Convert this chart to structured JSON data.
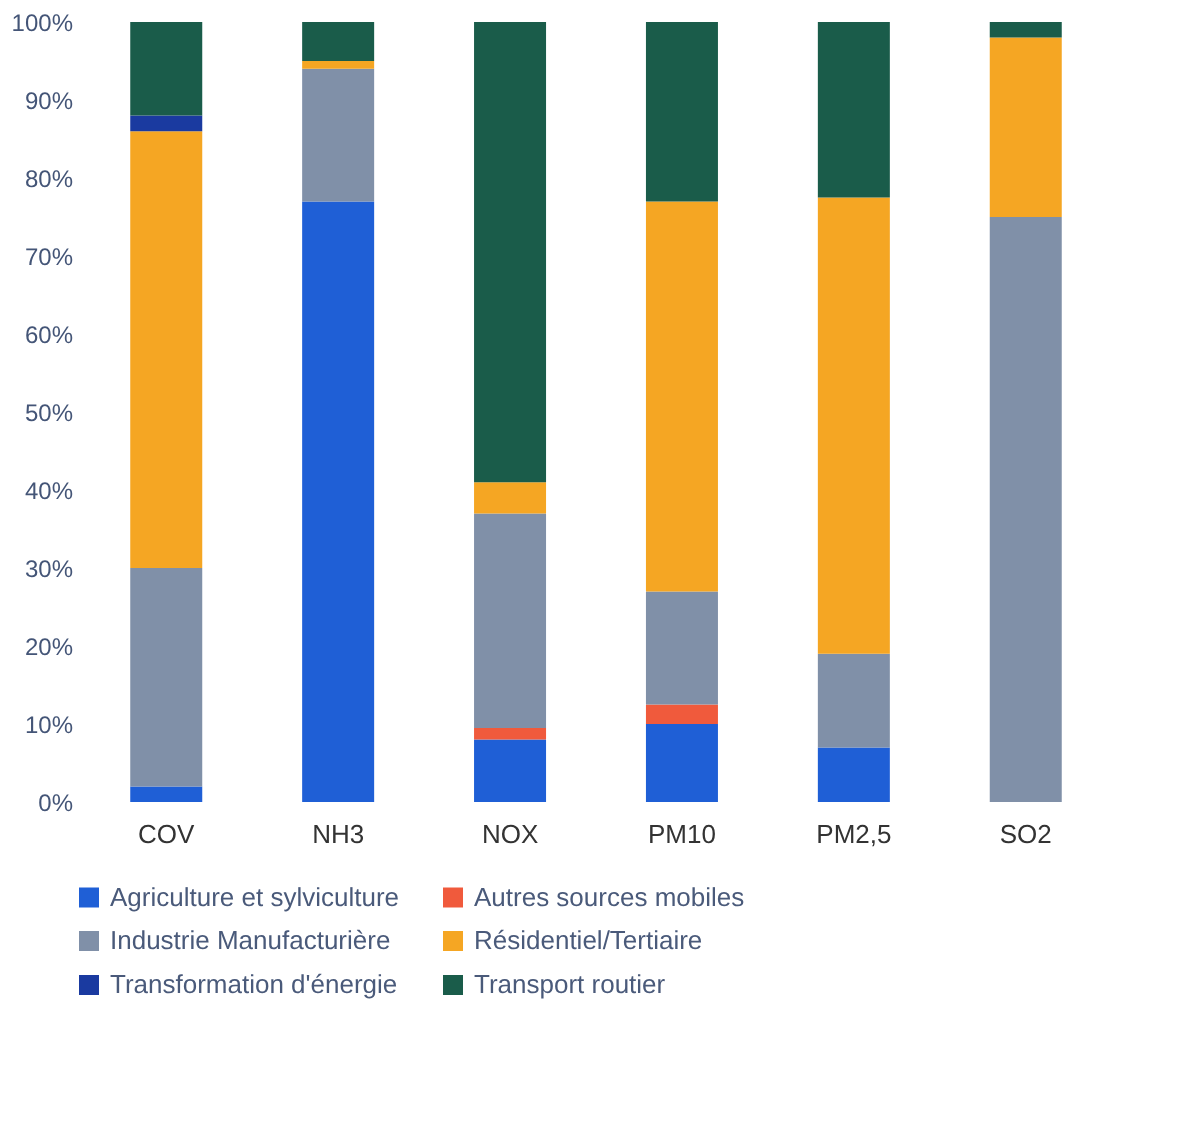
{
  "chart_data": {
    "type": "bar",
    "stacked": true,
    "categories": [
      "COV",
      "NH3",
      "NOX",
      "PM10",
      "PM2,5",
      "SO2"
    ],
    "ylim": [
      0,
      100
    ],
    "yticks": [
      {
        "value": 0,
        "label": "0%"
      },
      {
        "value": 10,
        "label": "10%"
      },
      {
        "value": 20,
        "label": "20%"
      },
      {
        "value": 30,
        "label": "30%"
      },
      {
        "value": 40,
        "label": "40%"
      },
      {
        "value": 50,
        "label": "50%"
      },
      {
        "value": 60,
        "label": "60%"
      },
      {
        "value": 70,
        "label": "70%"
      },
      {
        "value": 80,
        "label": "80%"
      },
      {
        "value": 90,
        "label": "90%"
      },
      {
        "value": 100,
        "label": "100%"
      }
    ],
    "grid": false,
    "legend": "bottom",
    "series": [
      {
        "name": "Agriculture et sylviculture",
        "color": "#1f5fd6",
        "values": [
          2,
          77,
          8,
          10,
          7,
          0
        ]
      },
      {
        "name": "Autres sources mobiles",
        "color": "#f05a3c",
        "values": [
          0,
          0,
          1.5,
          2.5,
          0,
          0
        ]
      },
      {
        "name": "Industrie Manufacturière",
        "color": "#8090a8",
        "values": [
          28,
          17,
          27.5,
          14.5,
          12,
          75
        ]
      },
      {
        "name": "Résidentiel/Tertiaire",
        "color": "#f5a623",
        "values": [
          56,
          1,
          4,
          50,
          58.5,
          23
        ]
      },
      {
        "name": "Transformation d'énergie",
        "color": "#1a3aa0",
        "values": [
          2,
          0,
          0,
          0,
          0,
          0
        ]
      },
      {
        "name": "Transport routier",
        "color": "#1a5c4a",
        "values": [
          12,
          5,
          59,
          23,
          22.5,
          2
        ]
      }
    ]
  }
}
